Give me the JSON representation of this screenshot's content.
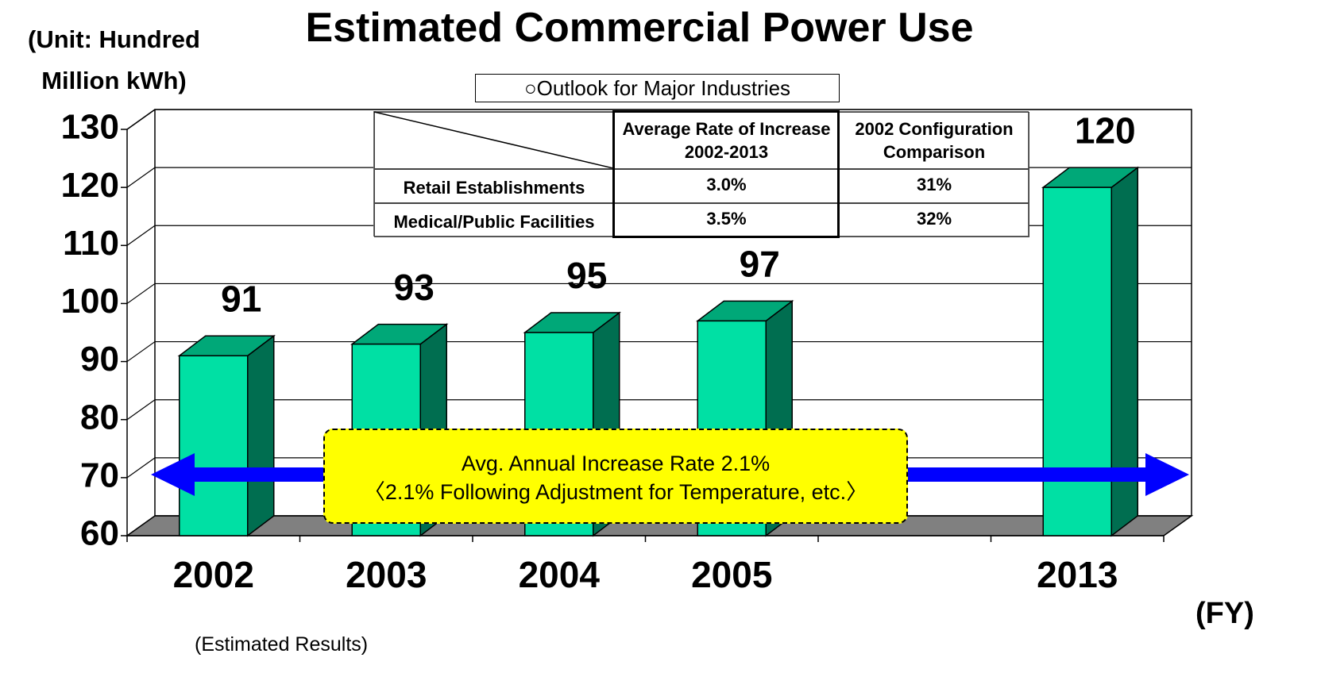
{
  "chart_data": {
    "type": "bar",
    "title": "Estimated Commercial Power Use",
    "y_label": "(Unit: Hundred Million kWh)",
    "x_label": "(FY)",
    "note": "(Estimated Results)",
    "categories": [
      "2002",
      "2003",
      "2004",
      "2005",
      null,
      "2013"
    ],
    "values": [
      91,
      93,
      95,
      97,
      null,
      120
    ],
    "color": "#00e0a4",
    "top_color": "#00a878",
    "side_color": "#006e50",
    "ylim": [
      60,
      130
    ],
    "yticks": [
      60,
      70,
      80,
      90,
      100,
      110,
      120,
      130
    ],
    "grid": true,
    "annotations": [
      "Avg. Annual Increase Rate 2.1%",
      "〈2.1% Following Adjustment for Temperature, etc.〉"
    ]
  },
  "table": {
    "title": "○Outlook for Major Industries",
    "columns": [
      "Average Rate of Increase 2002-2013",
      "2002 Configuration Comparison"
    ],
    "rows": [
      [
        "Retail Establishments",
        "3.0%",
        "31%"
      ],
      [
        "Medical/Public Facilities",
        "3.5%",
        "32%"
      ]
    ]
  }
}
